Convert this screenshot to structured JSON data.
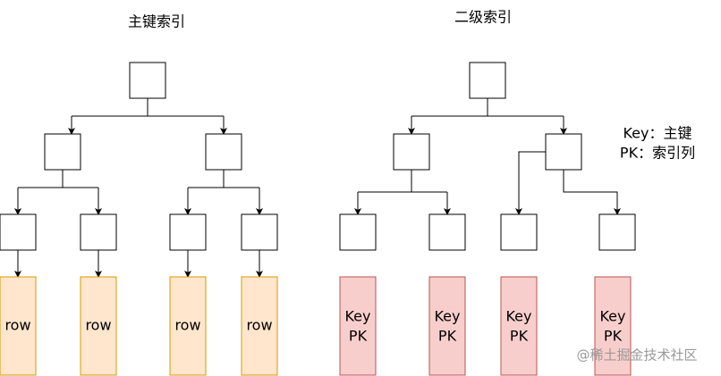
{
  "left": {
    "title": "主键索引",
    "leaves": [
      "row",
      "row",
      "row",
      "row"
    ]
  },
  "right": {
    "title": "二级索引",
    "leaves": [
      {
        "key": "Key",
        "pk": "PK"
      },
      {
        "key": "Key",
        "pk": "PK"
      },
      {
        "key": "Key",
        "pk": "PK"
      },
      {
        "key": "Key",
        "pk": "PK"
      }
    ]
  },
  "legend": [
    "Key：主键",
    "PK：索引列"
  ],
  "watermark": "@稀土掘金技术社区"
}
